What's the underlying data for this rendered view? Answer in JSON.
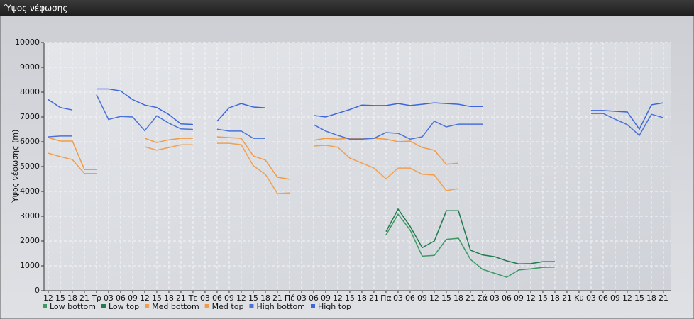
{
  "chart_data": {
    "type": "line",
    "title": "Ύψος νέφωσης",
    "y_label": "Ύψος νέφωσης (m)",
    "categories": [
      "12",
      "15",
      "18",
      "21",
      "Τρ",
      "03",
      "06",
      "09",
      "12",
      "15",
      "18",
      "21",
      "Τε",
      "03",
      "06",
      "09",
      "12",
      "15",
      "18",
      "21",
      "Πέ",
      "03",
      "06",
      "09",
      "12",
      "15",
      "18",
      "21",
      "Πα",
      "03",
      "06",
      "09",
      "12",
      "15",
      "18",
      "21",
      "Σά",
      "03",
      "06",
      "09",
      "12",
      "15",
      "18",
      "21",
      "Κυ",
      "03",
      "06",
      "09",
      "12",
      "15",
      "18",
      "21"
    ],
    "series": [
      {
        "name": "Low bottom",
        "color": "#3a9a62",
        "values": [
          null,
          null,
          null,
          null,
          null,
          null,
          null,
          null,
          null,
          null,
          null,
          null,
          null,
          null,
          null,
          null,
          null,
          null,
          null,
          null,
          null,
          null,
          null,
          null,
          null,
          null,
          null,
          null,
          2250,
          3080,
          2440,
          1390,
          1420,
          2070,
          2110,
          1260,
          860,
          700,
          540,
          830,
          880,
          940,
          950,
          null,
          null,
          null,
          null,
          null,
          null,
          null,
          null,
          null
        ]
      },
      {
        "name": "Low top",
        "color": "#237a4c",
        "values": [
          null,
          null,
          null,
          null,
          null,
          null,
          null,
          null,
          null,
          null,
          null,
          null,
          null,
          null,
          null,
          null,
          null,
          null,
          null,
          null,
          null,
          null,
          null,
          null,
          null,
          null,
          null,
          null,
          2380,
          3290,
          2590,
          1730,
          2000,
          3220,
          3220,
          1630,
          1440,
          1370,
          1200,
          1080,
          1090,
          1170,
          1170,
          null,
          null,
          null,
          null,
          null,
          null,
          null,
          null,
          null
        ]
      },
      {
        "name": "Med bottom",
        "color": "#f0a050",
        "values": [
          5540,
          5400,
          5280,
          4720,
          4720,
          null,
          null,
          null,
          5800,
          5660,
          5770,
          5880,
          5880,
          null,
          5940,
          5940,
          5880,
          5030,
          4690,
          3910,
          3940,
          null,
          5830,
          5860,
          5780,
          5340,
          5140,
          4940,
          4510,
          4940,
          4940,
          4690,
          4660,
          4030,
          4110,
          null,
          null,
          null,
          null,
          null,
          null,
          null,
          null,
          null,
          null,
          null,
          null,
          null,
          null,
          null,
          null,
          null
        ]
      },
      {
        "name": "Med top",
        "color": "#f29a45",
        "values": [
          6170,
          6030,
          6030,
          4880,
          4880,
          null,
          null,
          null,
          6140,
          5970,
          6080,
          6140,
          6140,
          null,
          6200,
          6170,
          6140,
          5430,
          5260,
          4570,
          4490,
          null,
          6060,
          6140,
          6110,
          6140,
          6140,
          6140,
          6110,
          6000,
          6030,
          5770,
          5660,
          5090,
          5140,
          null,
          null,
          null,
          null,
          null,
          null,
          null,
          null,
          null,
          null,
          null,
          null,
          null,
          null,
          null,
          null,
          null
        ]
      },
      {
        "name": "High bottom",
        "color": "#4a72d8",
        "values": [
          6200,
          6230,
          6230,
          null,
          7900,
          6900,
          7020,
          7000,
          6450,
          7050,
          6750,
          6520,
          6500,
          null,
          6510,
          6430,
          6430,
          6140,
          6140,
          null,
          null,
          null,
          6690,
          6430,
          6260,
          6110,
          6110,
          6140,
          6370,
          6340,
          6110,
          6200,
          6830,
          6600,
          6710,
          6710,
          6710,
          null,
          null,
          null,
          null,
          null,
          null,
          null,
          null,
          7140,
          7140,
          6910,
          6690,
          6260,
          7110,
          6970
        ]
      },
      {
        "name": "High top",
        "color": "#3d66dd",
        "values": [
          7700,
          7380,
          7280,
          null,
          8130,
          8130,
          8050,
          7700,
          7480,
          7380,
          7100,
          6720,
          6700,
          null,
          6830,
          7370,
          7540,
          7400,
          7370,
          null,
          null,
          null,
          7060,
          7000,
          7150,
          7300,
          7480,
          7460,
          7460,
          7540,
          7460,
          7510,
          7570,
          7540,
          7510,
          7420,
          7420,
          null,
          null,
          null,
          null,
          null,
          null,
          null,
          null,
          7260,
          7260,
          7230,
          7200,
          6510,
          7490,
          7570
        ]
      }
    ],
    "ylim": [
      0,
      10000
    ],
    "yticks": [
      0,
      1000,
      2000,
      3000,
      4000,
      5000,
      6000,
      7000,
      8000,
      9000,
      10000
    ],
    "grid": true
  }
}
